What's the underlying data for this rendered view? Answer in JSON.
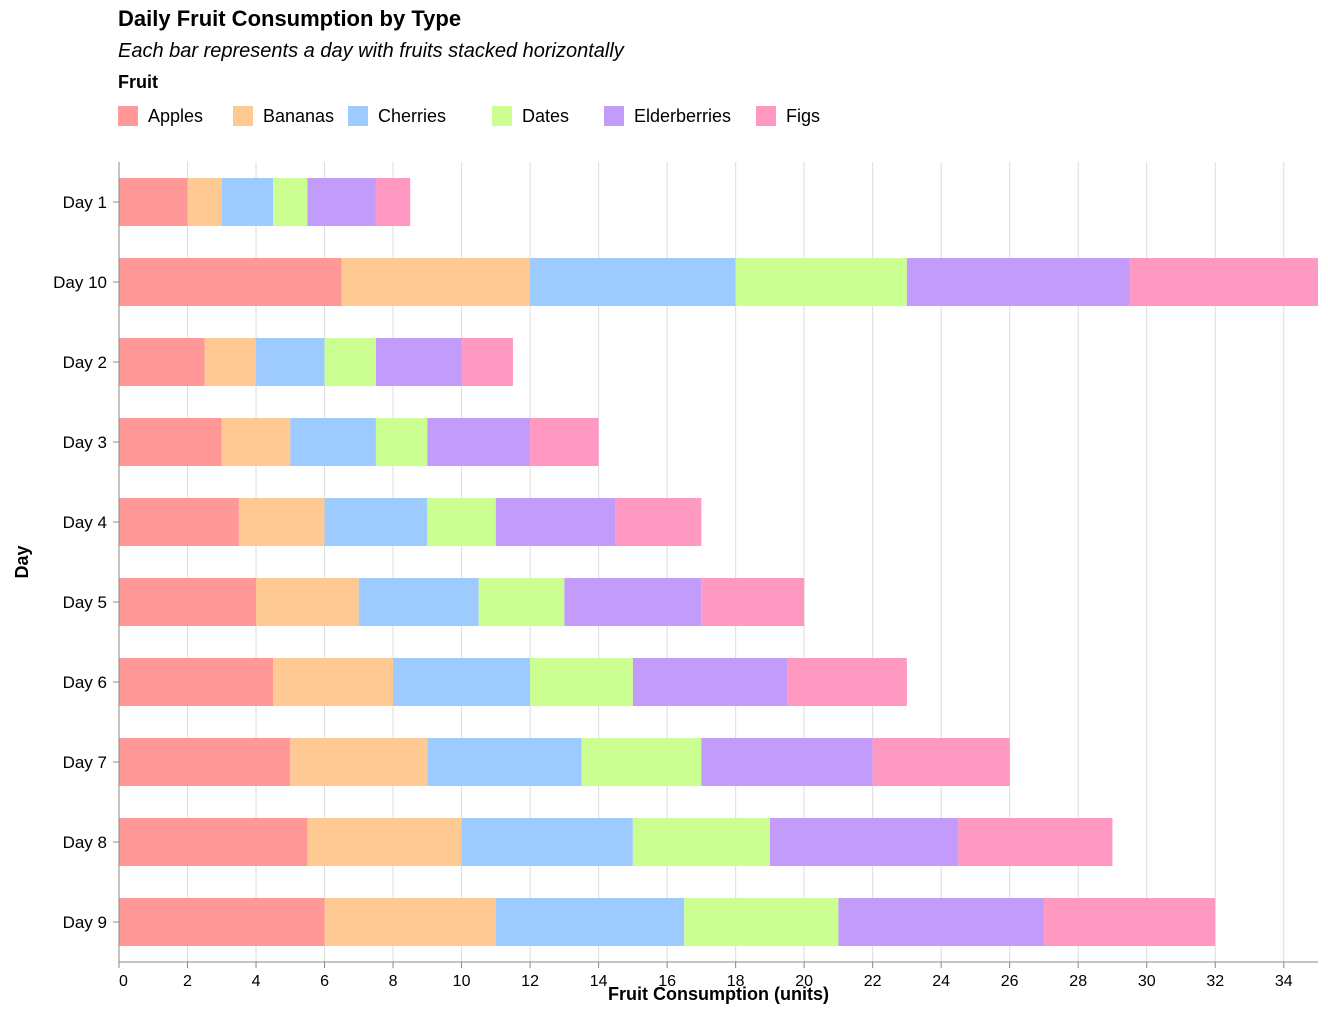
{
  "chart_data": {
    "type": "bar",
    "orientation": "horizontal",
    "stacked": true,
    "title": "Daily Fruit Consumption by Type",
    "subtitle": "Each bar represents a day with fruits stacked horizontally",
    "xlabel": "Fruit Consumption (units)",
    "ylabel": "Day",
    "xlim": [
      0,
      35
    ],
    "xticks": [
      0,
      2,
      4,
      6,
      8,
      10,
      12,
      14,
      16,
      18,
      20,
      22,
      24,
      26,
      28,
      30,
      32,
      34
    ],
    "grid": true,
    "legend_title": "Fruit",
    "legend_position": "top",
    "categories": [
      "Day 1",
      "Day 10",
      "Day 2",
      "Day 3",
      "Day 4",
      "Day 5",
      "Day 6",
      "Day 7",
      "Day 8",
      "Day 9"
    ],
    "series": [
      {
        "name": "Apples",
        "color": "#ff9896",
        "values": [
          2,
          6.5,
          2.5,
          3,
          3.5,
          4,
          4.5,
          5,
          5.5,
          6
        ]
      },
      {
        "name": "Bananas",
        "color": "#ffc994",
        "values": [
          1,
          5.5,
          1.5,
          2,
          2.5,
          3,
          3.5,
          4,
          4.5,
          5
        ]
      },
      {
        "name": "Cherries",
        "color": "#9ecbff",
        "values": [
          1.5,
          6,
          2,
          2.5,
          3,
          3.5,
          4,
          4.5,
          5,
          5.5
        ]
      },
      {
        "name": "Dates",
        "color": "#ccff91",
        "values": [
          1,
          5,
          1.5,
          1.5,
          2,
          2.5,
          3,
          3.5,
          4,
          4.5
        ]
      },
      {
        "name": "Elderberries",
        "color": "#c39bfb",
        "values": [
          2,
          6.5,
          2.5,
          3,
          3.5,
          4,
          4.5,
          5,
          5.5,
          6
        ]
      },
      {
        "name": "Figs",
        "color": "#ff99c2",
        "values": [
          1,
          5.5,
          1.5,
          2,
          2.5,
          3,
          3.5,
          4,
          4.5,
          5
        ]
      }
    ]
  }
}
